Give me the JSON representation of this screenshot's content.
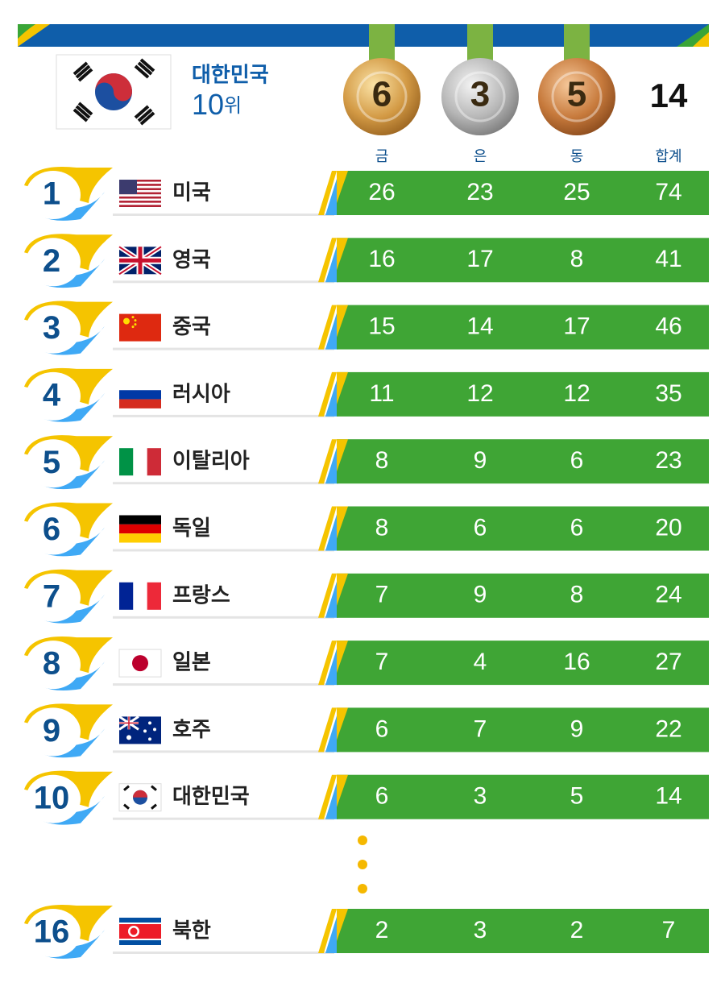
{
  "header": {
    "country": "대한민국",
    "rank": "10",
    "rank_unit": "위",
    "medals": [
      6,
      3,
      5
    ],
    "total": 14
  },
  "table": {
    "columns": [
      "금",
      "은",
      "동",
      "합계"
    ],
    "rows": [
      [
        1,
        "미국",
        26,
        23,
        25,
        74
      ],
      [
        2,
        "영국",
        16,
        17,
        8,
        41
      ],
      [
        3,
        "중국",
        15,
        14,
        17,
        46
      ],
      [
        4,
        "러시아",
        11,
        12,
        12,
        35
      ],
      [
        5,
        "이탈리아",
        8,
        9,
        6,
        23
      ],
      [
        6,
        "독일",
        8,
        6,
        6,
        20
      ],
      [
        7,
        "프랑스",
        7,
        9,
        8,
        24
      ],
      [
        8,
        "일본",
        7,
        4,
        16,
        27
      ],
      [
        9,
        "호주",
        6,
        7,
        9,
        22
      ],
      [
        10,
        "대한민국",
        6,
        3,
        5,
        14
      ],
      [
        16,
        "북한",
        2,
        3,
        2,
        7
      ]
    ]
  }
}
